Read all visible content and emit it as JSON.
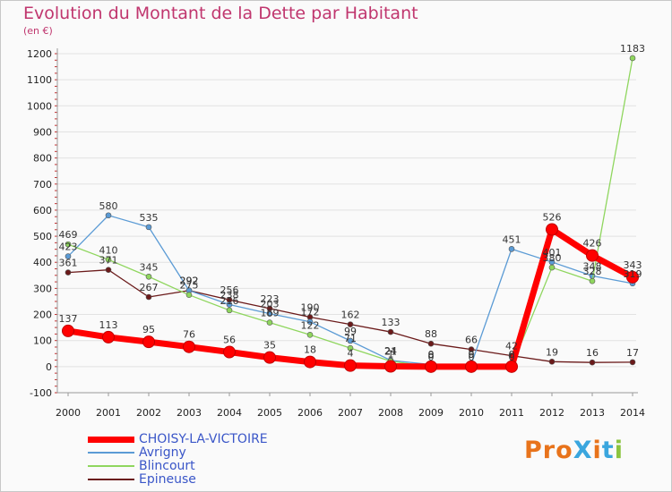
{
  "chart_data": {
    "type": "line",
    "title": "Evolution du Montant de la Dette par Habitant",
    "subtitle": "(en €)",
    "xlabel": "",
    "ylabel": "(en €)",
    "ylim": [
      -100,
      1200
    ],
    "yticks": [
      -100,
      0,
      100,
      200,
      300,
      400,
      500,
      600,
      700,
      800,
      900,
      1000,
      1100,
      1200
    ],
    "categories": [
      "2000",
      "2001",
      "2002",
      "2003",
      "2004",
      "2005",
      "2006",
      "2007",
      "2008",
      "2009",
      "2010",
      "2011",
      "2012",
      "2013",
      "2014"
    ],
    "legend_position": "bottom-left",
    "series": [
      {
        "name": "Epineuse",
        "color": "#6b1a1a",
        "width": 1.3,
        "values": [
          361,
          371,
          267,
          292,
          256,
          223,
          190,
          162,
          133,
          88,
          66,
          42,
          19,
          16,
          17
        ]
      },
      {
        "name": "Avrigny",
        "color": "#5b9bd5",
        "width": 1.3,
        "values": [
          423,
          580,
          535,
          292,
          238,
          203,
          172,
          99,
          24,
          8,
          9,
          451,
          401,
          348,
          319
        ]
      },
      {
        "name": "Blincourt",
        "color": "#8fd65e",
        "width": 1.3,
        "values": [
          469,
          410,
          345,
          275,
          216,
          169,
          122,
          71,
          21,
          0,
          0,
          0,
          380,
          328,
          1183
        ]
      },
      {
        "name": "CHOISY-LA-VICTOIRE",
        "color": "#ff0000",
        "width": 7,
        "values": [
          137,
          113,
          95,
          76,
          56,
          35,
          18,
          4,
          1,
          0,
          0,
          0,
          526,
          426,
          343
        ]
      }
    ],
    "legend_order": [
      "CHOISY-LA-VICTOIRE",
      "Avrigny",
      "Blincourt",
      "Epineuse"
    ],
    "label_color": "#333333"
  },
  "logo": {
    "text": "ProXiti",
    "colors": [
      "#e8731b",
      "#e8731b",
      "#e8731b",
      "#3aa6de",
      "#e8731b",
      "#3aa6de",
      "#8bc43f"
    ]
  }
}
